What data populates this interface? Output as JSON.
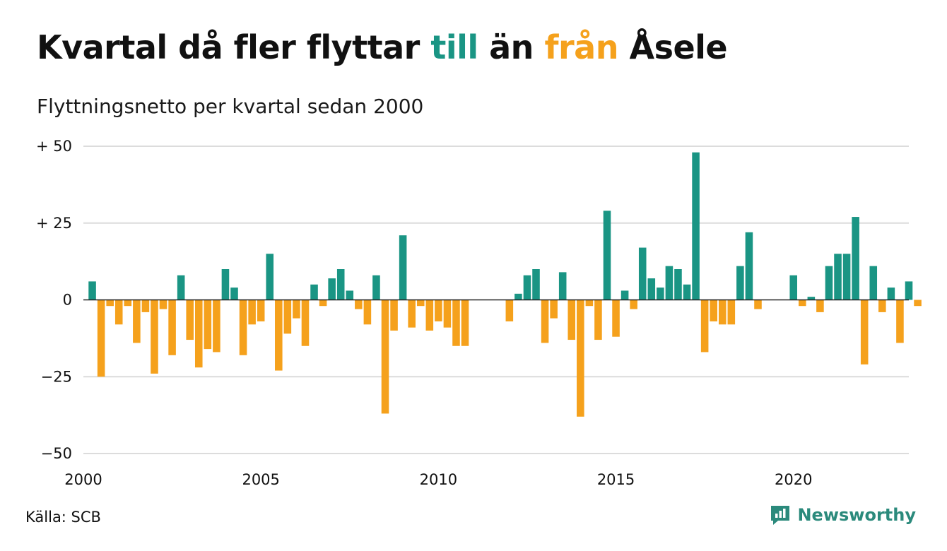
{
  "title": {
    "prefix": "Kvartal då fler flyttar ",
    "positive_word": "till",
    "middle": " än ",
    "negative_word": "från",
    "suffix": " Åsele"
  },
  "subtitle": "Flyttningsnetto per kvartal sedan 2000",
  "source": "Källa: SCB",
  "brand": {
    "name": "Newsworthy",
    "icon": "newsworthy-logo-icon"
  },
  "colors": {
    "positive": "#1a9584",
    "negative": "#f5a11c",
    "grid": "#dcdcdc",
    "zero": "#222222"
  },
  "chart_data": {
    "type": "bar",
    "title": "Kvartal då fler flyttar till än från Åsele",
    "subtitle": "Flyttningsnetto per kvartal sedan 2000",
    "x_start_year": 2000,
    "periods_per_year": 4,
    "xlim": [
      2000,
      2023.25
    ],
    "xticks": [
      2000,
      2005,
      2010,
      2015,
      2020
    ],
    "xtick_labels": [
      "2000",
      "2005",
      "2010",
      "2015",
      "2020"
    ],
    "ylim": [
      -50,
      50
    ],
    "yticks": [
      -50,
      -25,
      0,
      25,
      50
    ],
    "ytick_labels": [
      "−50",
      "−25",
      "0",
      "+ 25",
      "+ 50"
    ],
    "grid": true,
    "values": [
      6,
      -25,
      -2,
      -8,
      -2,
      -14,
      -4,
      -24,
      -3,
      -18,
      8,
      -13,
      -22,
      -16,
      -17,
      10,
      4,
      -18,
      -8,
      -7,
      15,
      -23,
      -11,
      -6,
      -15,
      5,
      -2,
      7,
      10,
      3,
      -3,
      -8,
      8,
      -37,
      -10,
      21,
      -9,
      -2,
      -10,
      -7,
      -9,
      -15,
      -15,
      0,
      0,
      0,
      0,
      -7,
      2,
      8,
      10,
      -14,
      -6,
      9,
      -13,
      -38,
      -2,
      -13,
      29,
      -12,
      3,
      -3,
      17,
      7,
      4,
      11,
      10,
      5,
      48,
      -17,
      -7,
      -8,
      -8,
      11,
      22,
      -3,
      0,
      0,
      0,
      8,
      -2,
      1,
      -4,
      11,
      15,
      15,
      27,
      -21,
      11,
      -4,
      4,
      -14,
      6,
      -2
    ]
  }
}
